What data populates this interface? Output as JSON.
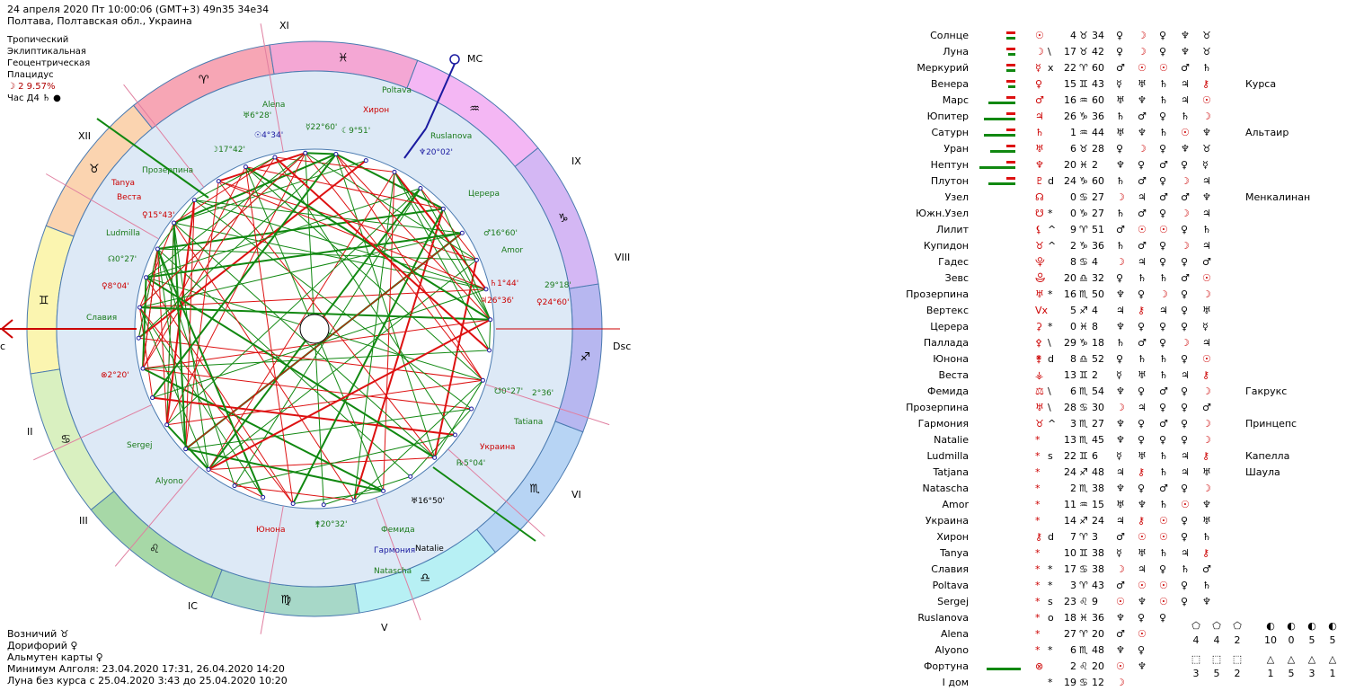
{
  "header": {
    "date_line": "24 апреля 2020  Пт  10:00:06 (GMT+3) 49n35  34e34",
    "place_line": "Полтава, Полтавская обл., Украина",
    "settings": [
      "Тропический",
      "Эклиптикальная",
      "Геоцентрическая",
      "Плацидус"
    ],
    "moon_phase": "☽   2 9.57%",
    "hour_line": "Час Д4  ♄  ●"
  },
  "footer": {
    "lines": [
      "Возничий  ♉",
      "Дорифорий  ♀",
      "Альмутен карты  ♀",
      "Минимум Алголя: 23.04.2020 17:31,  26.04.2020 14:20",
      "Луна без курса с 25.04.2020  3:43 до 25.04.2020 10:20"
    ]
  },
  "wheel": {
    "houses": [
      "XI",
      "XII",
      "II",
      "III",
      "IC",
      "V",
      "VI",
      "VIII",
      "IX"
    ],
    "angles": {
      "mc": "MC",
      "dsc": "Dsc",
      "asc": "c"
    },
    "zodiac": [
      "♈",
      "♉",
      "♊",
      "♋",
      "♌",
      "♍",
      "♎",
      "♏",
      "♐",
      "♑",
      "♒",
      "♓"
    ],
    "planets": [
      {
        "label": "Alena",
        "color": "#1a7a1a"
      },
      {
        "label": "Poltava",
        "color": "#1a7a1a"
      },
      {
        "label": "Хирон",
        "color": "#cc0000"
      },
      {
        "label": "♅6°28'",
        "color": "#1a7a1a"
      },
      {
        "label": "☉4°34'",
        "color": "#1a1aa0"
      },
      {
        "label": "☿22°60'",
        "color": "#1a7a1a"
      },
      {
        "label": "☾9°51'",
        "color": "#1a7a1a"
      },
      {
        "label": "Ruslanova",
        "color": "#1a7a1a"
      },
      {
        "label": "♆20°02'",
        "color": "#1a1aa0"
      },
      {
        "label": "☽17°42'",
        "color": "#1a7a1a"
      },
      {
        "label": "Прозерпина",
        "color": "#1a7a1a"
      },
      {
        "label": "Tanya",
        "color": "#cc0000"
      },
      {
        "label": "Веста",
        "color": "#cc0000"
      },
      {
        "label": "♀15°43'",
        "color": "#cc0000"
      },
      {
        "label": "Церера",
        "color": "#1a7a1a"
      },
      {
        "label": "Ludmilla",
        "color": "#1a7a1a"
      },
      {
        "label": "♂16°60'",
        "color": "#1a7a1a"
      },
      {
        "label": "Amor",
        "color": "#1a7a1a"
      },
      {
        "label": "☊0°27'",
        "color": "#1a7a1a"
      },
      {
        "label": "♀8°04'",
        "color": "#cc0000"
      },
      {
        "label": "♄1°44'",
        "color": "#cc0000"
      },
      {
        "label": "29°18'",
        "color": "#1a7a1a"
      },
      {
        "label": "♃26°36'",
        "color": "#cc0000"
      },
      {
        "label": "♀24°60'",
        "color": "#cc0000"
      },
      {
        "label": "Славия",
        "color": "#1a7a1a"
      },
      {
        "label": "⊗2°20'",
        "color": "#cc0000"
      },
      {
        "label": "☋0°27'",
        "color": "#1a7a1a"
      },
      {
        "label": "2°36'",
        "color": "#1a7a1a"
      },
      {
        "label": "Tatiana",
        "color": "#1a7a1a"
      },
      {
        "label": "Sergej",
        "color": "#1a7a1a"
      },
      {
        "label": "Украина",
        "color": "#cc0000"
      },
      {
        "label": "℞5°04'",
        "color": "#1a7a1a"
      },
      {
        "label": "Alyono",
        "color": "#1a7a1a"
      },
      {
        "label": "♅16°50'",
        "color": "#000000"
      },
      {
        "label": "Юнона",
        "color": "#cc0000"
      },
      {
        "label": "⚵20°32'",
        "color": "#1a7a1a"
      },
      {
        "label": "Фемида",
        "color": "#1a7a1a"
      },
      {
        "label": "Гармония",
        "color": "#1a1aa0"
      },
      {
        "label": "Natalie",
        "color": "#000000"
      },
      {
        "label": "Natascha",
        "color": "#1a7a1a"
      }
    ]
  },
  "table": {
    "rows": [
      {
        "name": "Солнце",
        "sym": "☉",
        "asp": "",
        "deg": "4",
        "sign": "♉",
        "min": "34",
        "r": [
          "♀",
          "☽",
          "♀",
          "♆",
          "♉"
        ],
        "star": ""
      },
      {
        "name": "Луна",
        "sym": "☽",
        "asp": "\\",
        "deg": "17",
        "sign": "♉",
        "min": "42",
        "r": [
          "♀",
          "☽",
          "♀",
          "♆",
          "♉"
        ],
        "star": ""
      },
      {
        "name": "Меркурий",
        "sym": "☿",
        "asp": "x",
        "deg": "22",
        "sign": "♈",
        "min": "60",
        "r": [
          "♂",
          "☉",
          "☉",
          "♂",
          "♄"
        ],
        "star": ""
      },
      {
        "name": "Венера",
        "sym": "♀",
        "asp": "",
        "deg": "15",
        "sign": "♊",
        "min": "43",
        "r": [
          "☿",
          "♅",
          "♄",
          "♃",
          "⚷"
        ],
        "star": "Курса"
      },
      {
        "name": "Марс",
        "sym": "♂",
        "asp": "",
        "deg": "16",
        "sign": "♒",
        "min": "60",
        "r": [
          "♅",
          "♆",
          "♄",
          "♃",
          "☉"
        ],
        "star": ""
      },
      {
        "name": "Юпитер",
        "sym": "♃",
        "asp": "",
        "deg": "26",
        "sign": "♑",
        "min": "36",
        "r": [
          "♄",
          "♂",
          "♀",
          "♄",
          "☽"
        ],
        "star": ""
      },
      {
        "name": "Сатурн",
        "sym": "♄",
        "asp": "",
        "deg": "1",
        "sign": "♒",
        "min": "44",
        "r": [
          "♅",
          "♆",
          "♄",
          "☉",
          "♆"
        ],
        "star": "Альтаир"
      },
      {
        "name": "Уран",
        "sym": "♅",
        "asp": "",
        "deg": "6",
        "sign": "♉",
        "min": "28",
        "r": [
          "♀",
          "☽",
          "♀",
          "♆",
          "♉"
        ],
        "star": ""
      },
      {
        "name": "Нептун",
        "sym": "♆",
        "asp": "",
        "deg": "20",
        "sign": "♓",
        "min": "2",
        "r": [
          "♆",
          "♀",
          "♂",
          "♀",
          "☿"
        ],
        "star": ""
      },
      {
        "name": "Плутон",
        "sym": "♇",
        "asp": "d",
        "deg": "24",
        "sign": "♑",
        "min": "60",
        "r": [
          "♄",
          "♂",
          "♀",
          "☽",
          "♃"
        ],
        "star": ""
      },
      {
        "name": "Узел",
        "sym": "☊",
        "asp": "",
        "deg": "0",
        "sign": "♋",
        "min": "27",
        "r": [
          "☽",
          "♃",
          "♂",
          "♂",
          "♆"
        ],
        "star": "Менкалинан"
      },
      {
        "name": "Южн.Узел",
        "sym": "☋",
        "asp": "*",
        "deg": "0",
        "sign": "♑",
        "min": "27",
        "r": [
          "♄",
          "♂",
          "♀",
          "☽",
          "♃"
        ],
        "star": ""
      },
      {
        "name": "Лилит",
        "sym": "⚸",
        "asp": "^",
        "deg": "9",
        "sign": "♈",
        "min": "51",
        "r": [
          "♂",
          "☉",
          "☉",
          "♀",
          "♄"
        ],
        "star": ""
      },
      {
        "name": "Купидон",
        "sym": "♉",
        "asp": "^",
        "deg": "2",
        "sign": "♑",
        "min": "36",
        "r": [
          "♄",
          "♂",
          "♀",
          "☽",
          "♃"
        ],
        "star": ""
      },
      {
        "name": "Гадес",
        "sym": "⯓",
        "asp": "",
        "deg": "8",
        "sign": "♋",
        "min": "4",
        "r": [
          "☽",
          "♃",
          "♀",
          "♀",
          "♂"
        ],
        "star": ""
      },
      {
        "name": "Зевс",
        "sym": "⯕",
        "asp": "",
        "deg": "20",
        "sign": "♎",
        "min": "32",
        "r": [
          "♀",
          "♄",
          "♄",
          "♂",
          "☉"
        ],
        "star": ""
      },
      {
        "name": "Прозерпина",
        "sym": "♅",
        "asp": "*",
        "deg": "16",
        "sign": "♏",
        "min": "50",
        "r": [
          "♆",
          "♀",
          "☽",
          "♀",
          "☽"
        ],
        "star": ""
      },
      {
        "name": "Вертекс",
        "sym": "Vx",
        "asp": "",
        "deg": "5",
        "sign": "♐",
        "min": "4",
        "r": [
          "♃",
          "⚷",
          "♃",
          "♀",
          "♅"
        ],
        "star": ""
      },
      {
        "name": "Церера",
        "sym": "⚳",
        "asp": "*",
        "deg": "0",
        "sign": "♓",
        "min": "8",
        "r": [
          "♆",
          "♀",
          "♀",
          "♀",
          "☿"
        ],
        "star": ""
      },
      {
        "name": "Паллада",
        "sym": "⚴",
        "asp": "\\",
        "deg": "29",
        "sign": "♑",
        "min": "18",
        "r": [
          "♄",
          "♂",
          "♀",
          "☽",
          "♃"
        ],
        "star": ""
      },
      {
        "name": "Юнона",
        "sym": "⚵",
        "asp": "d",
        "deg": "8",
        "sign": "♎",
        "min": "52",
        "r": [
          "♀",
          "♄",
          "♄",
          "♀",
          "☉"
        ],
        "star": ""
      },
      {
        "name": "Веста",
        "sym": "⚶",
        "asp": "",
        "deg": "13",
        "sign": "♊",
        "min": "2",
        "r": [
          "☿",
          "♅",
          "♄",
          "♃",
          "⚷"
        ],
        "star": ""
      },
      {
        "name": "Фемида",
        "sym": "⚖",
        "asp": "\\",
        "deg": "6",
        "sign": "♏",
        "min": "54",
        "r": [
          "♆",
          "♀",
          "♂",
          "♀",
          "☽"
        ],
        "star": "Гакрукс"
      },
      {
        "name": "Прозерпина",
        "sym": "♅",
        "asp": "\\",
        "deg": "28",
        "sign": "♋",
        "min": "30",
        "r": [
          "☽",
          "♃",
          "♀",
          "♀",
          "♂"
        ],
        "star": ""
      },
      {
        "name": "Гармония",
        "sym": "♉",
        "asp": "^",
        "deg": "3",
        "sign": "♏",
        "min": "27",
        "r": [
          "♆",
          "♀",
          "♂",
          "♀",
          "☽"
        ],
        "star": "Принцепс"
      },
      {
        "name": "Natalie",
        "sym": "*",
        "asp": "",
        "deg": "13",
        "sign": "♏",
        "min": "45",
        "r": [
          "♆",
          "♀",
          "♀",
          "♀",
          "☽"
        ],
        "star": ""
      },
      {
        "name": "Ludmilla",
        "sym": "*",
        "asp": "s",
        "deg": "22",
        "sign": "♊",
        "min": "6",
        "r": [
          "☿",
          "♅",
          "♄",
          "♃",
          "⚷"
        ],
        "star": "Капелла"
      },
      {
        "name": "Tatjana",
        "sym": "*",
        "asp": "",
        "deg": "24",
        "sign": "♐",
        "min": "48",
        "r": [
          "♃",
          "⚷",
          "♄",
          "♃",
          "♅"
        ],
        "star": "Шаула"
      },
      {
        "name": "Natascha",
        "sym": "*",
        "asp": "",
        "deg": "2",
        "sign": "♏",
        "min": "38",
        "r": [
          "♆",
          "♀",
          "♂",
          "♀",
          "☽"
        ],
        "star": ""
      },
      {
        "name": "Amor",
        "sym": "*",
        "asp": "",
        "deg": "11",
        "sign": "♒",
        "min": "15",
        "r": [
          "♅",
          "♆",
          "♄",
          "☉",
          "♆"
        ],
        "star": ""
      },
      {
        "name": "Украина",
        "sym": "*",
        "asp": "",
        "deg": "14",
        "sign": "♐",
        "min": "24",
        "r": [
          "♃",
          "⚷",
          "☉",
          "♀",
          "♅"
        ],
        "star": ""
      },
      {
        "name": "Хирон",
        "sym": "⚷",
        "asp": "d",
        "deg": "7",
        "sign": "♈",
        "min": "3",
        "r": [
          "♂",
          "☉",
          "☉",
          "♀",
          "♄"
        ],
        "star": ""
      },
      {
        "name": "Tanya",
        "sym": "*",
        "asp": "",
        "deg": "10",
        "sign": "♊",
        "min": "38",
        "r": [
          "☿",
          "♅",
          "♄",
          "♃",
          "⚷"
        ],
        "star": ""
      },
      {
        "name": "Славия",
        "sym": "*",
        "asp": "*",
        "deg": "17",
        "sign": "♋",
        "min": "38",
        "r": [
          "☽",
          "♃",
          "♀",
          "♄",
          "♂"
        ],
        "star": ""
      },
      {
        "name": "Poltava",
        "sym": "*",
        "asp": "*",
        "deg": "3",
        "sign": "♈",
        "min": "43",
        "r": [
          "♂",
          "☉",
          "☉",
          "♀",
          "♄"
        ],
        "star": ""
      },
      {
        "name": "Sergej",
        "sym": "*",
        "asp": "s",
        "deg": "23",
        "sign": "♌",
        "min": "9",
        "r": [
          "☉",
          "♆",
          "☉",
          "♀",
          "♆"
        ],
        "star": ""
      },
      {
        "name": "Ruslanova",
        "sym": "*",
        "asp": "o",
        "deg": "18",
        "sign": "♓",
        "min": "36",
        "r": [
          "♆",
          "♀",
          "♀",
          "",
          "",
          ""
        ],
        "star": ""
      },
      {
        "name": "Alena",
        "sym": "*",
        "asp": "",
        "deg": "27",
        "sign": "♈",
        "min": "20",
        "r": [
          "♂",
          "☉",
          "",
          "",
          ""
        ],
        "star": ""
      },
      {
        "name": "Alyono",
        "sym": "*",
        "asp": "*",
        "deg": "6",
        "sign": "♏",
        "min": "48",
        "r": [
          "♆",
          "♀",
          "",
          "",
          ""
        ],
        "star": ""
      },
      {
        "name": "Фортуна",
        "sym": "⊗",
        "asp": "",
        "deg": "2",
        "sign": "♌",
        "min": "20",
        "r": [
          "☉",
          "♆",
          "",
          "",
          ""
        ],
        "star": ""
      },
      {
        "name": "I дом",
        "sym": "",
        "asp": "*",
        "deg": "19",
        "sign": "♋",
        "min": "12",
        "r": [
          "☽",
          "",
          "",
          "",
          ""
        ],
        "star": ""
      }
    ]
  },
  "stats": {
    "group1_counts": [
      "4",
      "4",
      "2"
    ],
    "group2_counts": [
      "10",
      "0",
      "5",
      "5"
    ],
    "group3_counts": [
      "3",
      "5",
      "2"
    ],
    "group4_counts": [
      "1",
      "5",
      "3",
      "1"
    ]
  }
}
